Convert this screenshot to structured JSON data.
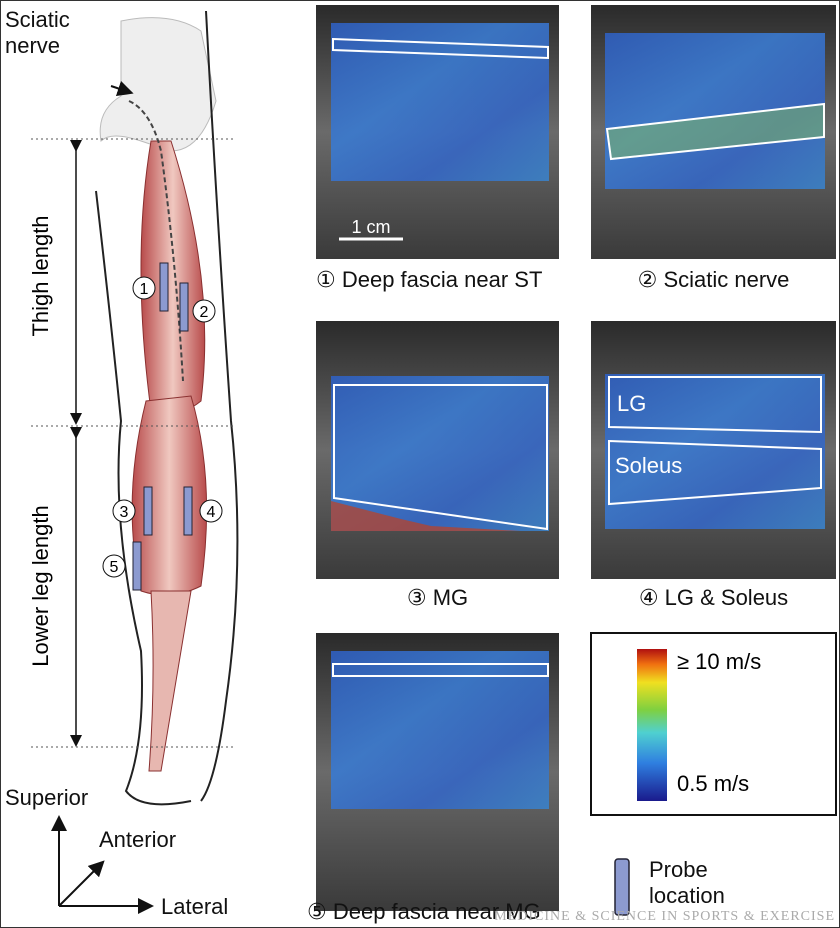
{
  "illustration": {
    "nerve_label": "Sciatic nerve",
    "thigh_label": "Thigh length",
    "lower_leg_label": "Lower leg length",
    "probes": [
      "1",
      "2",
      "3",
      "4",
      "5"
    ],
    "axes": {
      "superior": "Superior",
      "anterior": "Anterior",
      "lateral": "Lateral"
    }
  },
  "panels": [
    {
      "caption": "① Deep fascia near ST",
      "scale_bar": "1 cm"
    },
    {
      "caption": "② Sciatic nerve"
    },
    {
      "caption": "③ MG"
    },
    {
      "caption": "④ LG & Soleus",
      "regions": [
        "LG",
        "Soleus"
      ]
    },
    {
      "caption": "⑤ Deep fascia near MG"
    }
  ],
  "colorbar": {
    "max_label": "≥ 10 m/s",
    "min_label": "0.5 m/s"
  },
  "legend": {
    "probe_label": "Probe location"
  },
  "watermark": "MEDICINE & SCIENCE IN SPORTS & EXERCISE"
}
